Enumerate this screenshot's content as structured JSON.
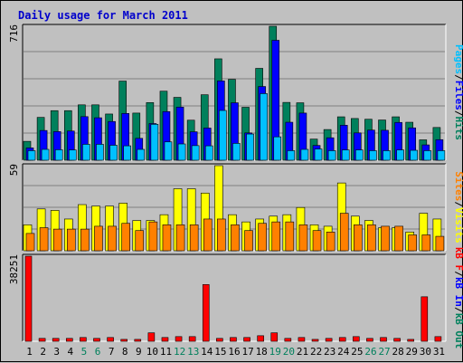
{
  "window": {
    "title": "Daily usage for March 2011"
  },
  "colors": {
    "title": "#0000cc",
    "hits": "#00805c",
    "files": "#0000ff",
    "pages": "#00c0ff",
    "visits": "#ffff00",
    "sites": "#ff8000",
    "kbf": "#ff0000",
    "kbin": "#0000ff",
    "kbout": "#00805c",
    "slash": "#000000",
    "grid": "#808080",
    "panel": "#c0c0c0",
    "dark_day": "#000000",
    "weekend_day": "#00805c"
  },
  "chart_data": [
    {
      "type": "bar",
      "panel": "hits-files-pages",
      "ylim": [
        0,
        716
      ],
      "ytick_label": "716",
      "legend": [
        "Pages",
        "Files",
        "Hits"
      ],
      "categories": [
        "1",
        "2",
        "3",
        "4",
        "5",
        "6",
        "7",
        "8",
        "9",
        "10",
        "11",
        "12",
        "13",
        "14",
        "15",
        "16",
        "17",
        "18",
        "19",
        "20",
        "21",
        "22",
        "23",
        "24",
        "25",
        "26",
        "27",
        "28",
        "29",
        "30",
        "31"
      ],
      "series": [
        {
          "name": "Hits",
          "values": [
            101,
            229,
            265,
            265,
            296,
            296,
            247,
            423,
            252,
            308,
            369,
            336,
            214,
            350,
            542,
            432,
            283,
            491,
            716,
            309,
            307,
            113,
            164,
            232,
            223,
            219,
            215,
            232,
            203,
            109,
            175
          ]
        },
        {
          "name": "Files",
          "values": [
            66,
            159,
            153,
            156,
            233,
            227,
            207,
            250,
            117,
            196,
            260,
            284,
            152,
            172,
            424,
            307,
            146,
            394,
            641,
            203,
            252,
            79,
            120,
            187,
            146,
            161,
            160,
            202,
            173,
            82,
            110
          ]
        },
        {
          "name": "Pages",
          "values": [
            51,
            58,
            56,
            55,
            85,
            85,
            80,
            77,
            58,
            192,
            98,
            87,
            78,
            77,
            266,
            90,
            140,
            356,
            125,
            51,
            58,
            60,
            51,
            55,
            55,
            51,
            51,
            55,
            53,
            51,
            51
          ]
        }
      ]
    },
    {
      "type": "bar",
      "panel": "visits-sites",
      "ylim": [
        0,
        59
      ],
      "ytick_label": "59",
      "legend": [
        "Sites",
        "Visits"
      ],
      "categories": [
        "1",
        "2",
        "3",
        "4",
        "5",
        "6",
        "7",
        "8",
        "9",
        "10",
        "11",
        "12",
        "13",
        "14",
        "15",
        "16",
        "17",
        "18",
        "19",
        "20",
        "21",
        "22",
        "23",
        "24",
        "25",
        "26",
        "27",
        "28",
        "29",
        "30",
        "31"
      ],
      "series": [
        {
          "name": "Visits",
          "values": [
            18,
            29,
            28,
            22,
            32,
            31,
            31,
            33,
            21,
            21,
            25,
            43,
            43,
            40,
            59,
            25,
            20,
            22,
            24,
            25,
            30,
            18,
            17,
            47,
            24,
            21,
            16,
            16,
            13,
            26,
            22
          ]
        },
        {
          "name": "Sites",
          "values": [
            12,
            16,
            15,
            15,
            15,
            17,
            17,
            19,
            14,
            20,
            18,
            18,
            18,
            22,
            22,
            18,
            14,
            19,
            20,
            20,
            18,
            14,
            13,
            26,
            18,
            18,
            17,
            17,
            11,
            11,
            10
          ]
        }
      ]
    },
    {
      "type": "bar",
      "panel": "kbytes",
      "ylim": [
        0,
        38251
      ],
      "ytick_label": "38251",
      "legend": [
        "kB F",
        "kB In",
        "kB Out"
      ],
      "categories": [
        "1",
        "2",
        "3",
        "4",
        "5",
        "6",
        "7",
        "8",
        "9",
        "10",
        "11",
        "12",
        "13",
        "14",
        "15",
        "16",
        "17",
        "18",
        "19",
        "20",
        "21",
        "22",
        "23",
        "24",
        "25",
        "26",
        "27",
        "28",
        "29",
        "30",
        "31"
      ],
      "series": [
        {
          "name": "kB F",
          "values": [
            38251,
            1300,
            1300,
            1300,
            1700,
            1300,
            1700,
            850,
            850,
            3800,
            1700,
            2100,
            2100,
            25500,
            1300,
            1700,
            1700,
            2500,
            3800,
            1300,
            1700,
            850,
            1300,
            1700,
            2100,
            1300,
            1700,
            1300,
            850,
            20000,
            2100
          ]
        }
      ]
    }
  ],
  "day_label_color_kind": [
    "dark",
    "dark",
    "dark",
    "dark",
    "weekend",
    "weekend",
    "dark",
    "dark",
    "dark",
    "dark",
    "dark",
    "weekend",
    "weekend",
    "dark",
    "dark",
    "dark",
    "dark",
    "dark",
    "weekend",
    "weekend",
    "dark",
    "dark",
    "dark",
    "dark",
    "dark",
    "weekend",
    "weekend",
    "dark",
    "dark",
    "dark",
    "dark"
  ]
}
